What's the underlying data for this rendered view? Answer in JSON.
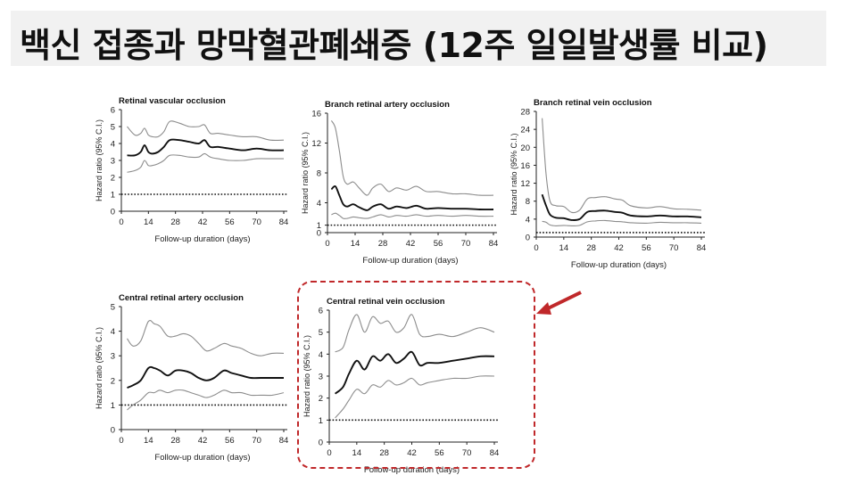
{
  "page": {
    "title": "백신 접종과 망막혈관폐쇄증 (12주 일일발생률 비교)"
  },
  "colors": {
    "title_bg": "#f1f1f1",
    "estimate": "#111111",
    "ci": "#8c8c8c",
    "reference": "#111111",
    "highlight": "#c0282a"
  },
  "chart_data": [
    {
      "type": "line",
      "title": "Retinal vascular occlusion",
      "xlabel": "Follow-up duration (days)",
      "ylabel": "Hazard ratio (95% C.I.)",
      "xticks": [
        0,
        14,
        28,
        42,
        56,
        70,
        84
      ],
      "yticks": [
        0,
        1,
        2,
        3,
        4,
        5,
        6
      ],
      "xlim": [
        0,
        84
      ],
      "ylim": [
        0,
        6
      ],
      "reference_line": 1,
      "x": [
        3,
        7,
        10,
        12,
        14,
        16,
        19,
        22,
        25,
        30,
        35,
        40,
        43,
        46,
        50,
        56,
        63,
        70,
        77,
        84
      ],
      "series": [
        {
          "role": "upper",
          "values": [
            5.0,
            4.5,
            4.6,
            4.9,
            4.5,
            4.4,
            4.4,
            4.7,
            5.3,
            5.2,
            5.0,
            5.0,
            5.1,
            4.6,
            4.6,
            4.5,
            4.4,
            4.4,
            4.2,
            4.2
          ]
        },
        {
          "role": "estimate",
          "values": [
            3.3,
            3.3,
            3.5,
            3.9,
            3.5,
            3.4,
            3.5,
            3.8,
            4.2,
            4.2,
            4.1,
            4.0,
            4.2,
            3.8,
            3.8,
            3.7,
            3.6,
            3.7,
            3.6,
            3.6
          ]
        },
        {
          "role": "lower",
          "values": [
            2.3,
            2.4,
            2.6,
            3.0,
            2.7,
            2.7,
            2.8,
            3.0,
            3.3,
            3.3,
            3.2,
            3.2,
            3.4,
            3.2,
            3.1,
            3.0,
            3.0,
            3.1,
            3.1,
            3.1
          ]
        }
      ]
    },
    {
      "type": "line",
      "title": "Branch retinal artery occlusion",
      "xlabel": "Follow-up duration (days)",
      "ylabel": "Hazard ratio (95% C.I.)",
      "xticks": [
        0,
        14,
        28,
        42,
        56,
        70,
        84
      ],
      "yticks": [
        0,
        1,
        4,
        8,
        12,
        16
      ],
      "xlim": [
        0,
        84
      ],
      "ylim": [
        0,
        16
      ],
      "reference_line": 1,
      "x": [
        2,
        4,
        6,
        8,
        10,
        13,
        16,
        20,
        23,
        27,
        31,
        35,
        40,
        45,
        50,
        56,
        63,
        70,
        77,
        84
      ],
      "series": [
        {
          "role": "upper",
          "values": [
            15.0,
            14.0,
            11.0,
            7.5,
            6.5,
            6.8,
            6.0,
            5.0,
            6.0,
            6.5,
            5.5,
            6.0,
            5.7,
            6.2,
            5.5,
            5.5,
            5.2,
            5.2,
            5.0,
            5.0
          ]
        },
        {
          "role": "estimate",
          "values": [
            5.8,
            6.2,
            5.0,
            3.8,
            3.5,
            3.8,
            3.4,
            3.0,
            3.5,
            3.8,
            3.2,
            3.5,
            3.3,
            3.6,
            3.2,
            3.3,
            3.2,
            3.2,
            3.1,
            3.1
          ]
        },
        {
          "role": "lower",
          "values": [
            2.4,
            2.6,
            2.3,
            1.9,
            1.9,
            2.1,
            2.0,
            1.9,
            2.1,
            2.4,
            2.1,
            2.3,
            2.2,
            2.4,
            2.2,
            2.3,
            2.2,
            2.3,
            2.2,
            2.2
          ]
        }
      ]
    },
    {
      "type": "line",
      "title": "Branch retinal vein occlusion",
      "xlabel": "Follow-up duration (days)",
      "ylabel": "Hazard ratio (95% C.I.)",
      "xticks": [
        0,
        14,
        28,
        42,
        56,
        70,
        84
      ],
      "yticks": [
        0,
        4,
        8,
        12,
        16,
        20,
        24,
        28
      ],
      "xlim": [
        0,
        84
      ],
      "ylim": [
        0,
        28
      ],
      "reference_line": 1,
      "x": [
        3,
        5,
        7,
        10,
        14,
        18,
        22,
        26,
        30,
        35,
        40,
        44,
        48,
        56,
        63,
        70,
        77,
        84
      ],
      "series": [
        {
          "role": "upper",
          "values": [
            26.5,
            14.0,
            8.0,
            7.0,
            6.8,
            5.5,
            6.0,
            8.5,
            8.8,
            9.0,
            8.5,
            8.2,
            7.0,
            6.5,
            6.8,
            6.3,
            6.2,
            6.0
          ]
        },
        {
          "role": "estimate",
          "values": [
            9.5,
            7.0,
            5.0,
            4.3,
            4.2,
            3.8,
            4.0,
            5.6,
            5.8,
            5.9,
            5.6,
            5.4,
            4.8,
            4.6,
            4.8,
            4.6,
            4.6,
            4.4
          ]
        },
        {
          "role": "lower",
          "values": [
            3.5,
            3.3,
            2.7,
            2.5,
            2.6,
            2.5,
            2.6,
            3.4,
            3.6,
            3.7,
            3.5,
            3.4,
            3.2,
            3.1,
            3.3,
            3.2,
            3.2,
            3.1
          ]
        }
      ]
    },
    {
      "type": "line",
      "title": "Central retinal artery occlusion",
      "xlabel": "Follow-up duration (days)",
      "ylabel": "Hazard ratio (95% C.I.)",
      "xticks": [
        0,
        14,
        28,
        42,
        56,
        70,
        84
      ],
      "yticks": [
        0,
        1,
        2,
        3,
        4,
        5
      ],
      "xlim": [
        0,
        84
      ],
      "ylim": [
        0,
        5
      ],
      "reference_line": 1,
      "x": [
        3,
        6,
        10,
        14,
        17,
        20,
        24,
        28,
        32,
        36,
        40,
        44,
        48,
        53,
        57,
        62,
        67,
        72,
        78,
        84
      ],
      "series": [
        {
          "role": "upper",
          "values": [
            3.7,
            3.4,
            3.6,
            4.4,
            4.3,
            4.2,
            3.8,
            3.8,
            3.9,
            3.8,
            3.5,
            3.2,
            3.3,
            3.5,
            3.4,
            3.3,
            3.1,
            3.0,
            3.1,
            3.1
          ]
        },
        {
          "role": "estimate",
          "values": [
            1.7,
            1.8,
            2.0,
            2.5,
            2.5,
            2.4,
            2.2,
            2.4,
            2.4,
            2.3,
            2.1,
            2.0,
            2.1,
            2.4,
            2.3,
            2.2,
            2.1,
            2.1,
            2.1,
            2.1
          ]
        },
        {
          "role": "lower",
          "values": [
            0.8,
            1.0,
            1.2,
            1.5,
            1.5,
            1.6,
            1.5,
            1.6,
            1.6,
            1.5,
            1.4,
            1.3,
            1.4,
            1.6,
            1.5,
            1.5,
            1.4,
            1.4,
            1.4,
            1.5
          ]
        }
      ]
    },
    {
      "type": "line",
      "title": "Central retinal vein occlusion",
      "xlabel": "Follow-up duration (days)",
      "ylabel": "Hazard ratio (95% C.I.)",
      "xticks": [
        0,
        14,
        28,
        42,
        56,
        70,
        84
      ],
      "yticks": [
        0,
        1,
        2,
        3,
        4,
        5,
        6
      ],
      "xlim": [
        0,
        84
      ],
      "ylim": [
        0,
        6
      ],
      "reference_line": 1,
      "highlighted": true,
      "x": [
        3,
        7,
        10,
        14,
        18,
        22,
        26,
        30,
        34,
        38,
        42,
        46,
        50,
        56,
        63,
        70,
        77,
        84
      ],
      "series": [
        {
          "role": "upper",
          "values": [
            4.1,
            4.3,
            5.1,
            5.8,
            5.0,
            5.7,
            5.4,
            5.5,
            5.0,
            5.2,
            5.8,
            4.9,
            4.8,
            4.9,
            4.8,
            5.0,
            5.2,
            5.0
          ]
        },
        {
          "role": "estimate",
          "values": [
            2.2,
            2.5,
            3.1,
            3.7,
            3.3,
            3.9,
            3.7,
            4.0,
            3.6,
            3.8,
            4.1,
            3.5,
            3.6,
            3.6,
            3.7,
            3.8,
            3.9,
            3.9
          ]
        },
        {
          "role": "lower",
          "values": [
            1.1,
            1.5,
            1.9,
            2.4,
            2.2,
            2.6,
            2.5,
            2.8,
            2.6,
            2.7,
            2.9,
            2.6,
            2.7,
            2.8,
            2.9,
            2.9,
            3.0,
            3.0
          ]
        }
      ]
    }
  ]
}
